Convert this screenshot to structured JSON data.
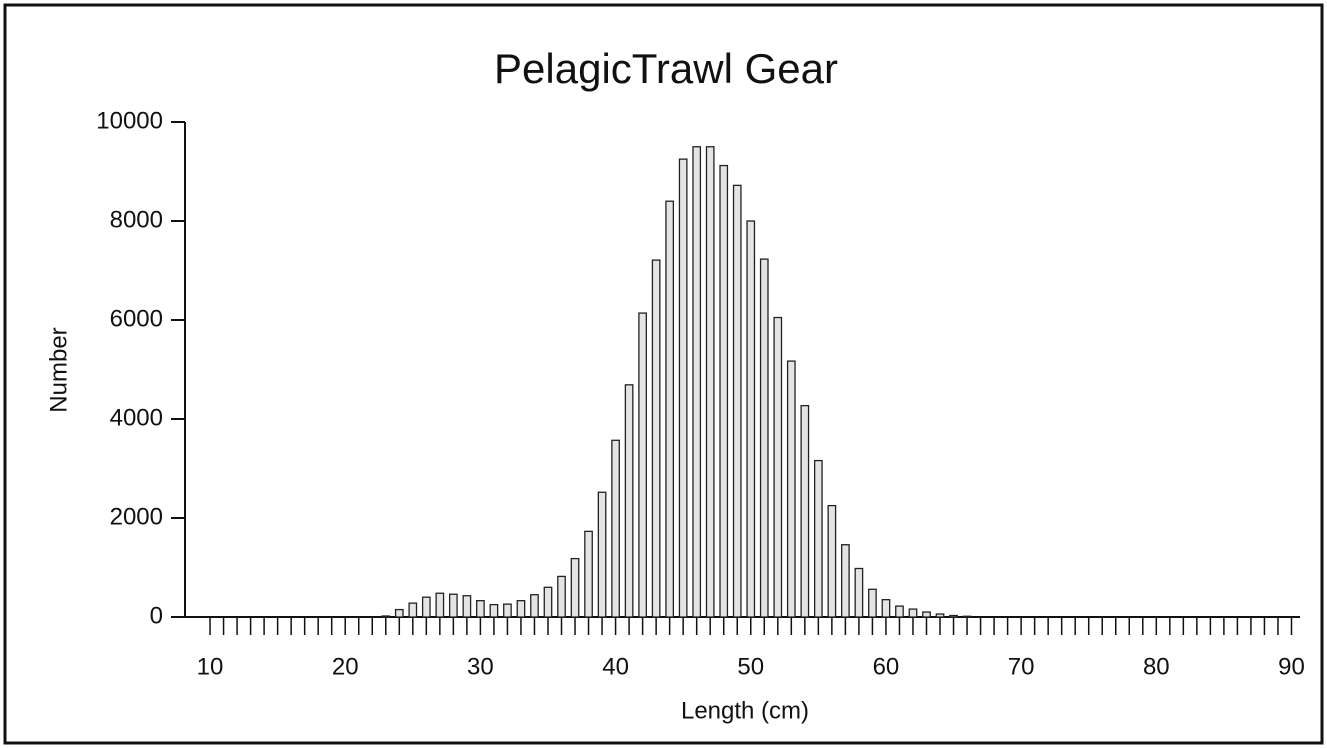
{
  "chart_data": {
    "type": "bar",
    "title": "PelagicTrawl Gear",
    "xlabel": "Length (cm)",
    "ylabel": "Number",
    "x": [
      10,
      11,
      12,
      13,
      14,
      15,
      16,
      17,
      18,
      19,
      20,
      21,
      22,
      23,
      24,
      25,
      26,
      27,
      28,
      29,
      30,
      31,
      32,
      33,
      34,
      35,
      36,
      37,
      38,
      39,
      40,
      41,
      42,
      43,
      44,
      45,
      46,
      47,
      48,
      49,
      50,
      51,
      52,
      53,
      54,
      55,
      56,
      57,
      58,
      59,
      60,
      61,
      62,
      63,
      64,
      65,
      66,
      67,
      68,
      69,
      70,
      71,
      72,
      73,
      74,
      75,
      76,
      77,
      78,
      79,
      80,
      81,
      82,
      83,
      84,
      85,
      86,
      87,
      88,
      89,
      90
    ],
    "values": [
      0,
      0,
      0,
      0,
      0,
      0,
      0,
      0,
      0,
      0,
      0,
      0,
      0,
      20,
      150,
      280,
      400,
      480,
      460,
      430,
      330,
      250,
      260,
      330,
      450,
      600,
      820,
      1180,
      1730,
      2520,
      3570,
      4690,
      6140,
      7210,
      8400,
      9250,
      9500,
      9500,
      9120,
      8720,
      8000,
      7230,
      6050,
      5170,
      4270,
      3160,
      2250,
      1460,
      980,
      560,
      350,
      220,
      160,
      100,
      60,
      30,
      15,
      0,
      0,
      0,
      0,
      0,
      0,
      0,
      0,
      0,
      0,
      0,
      0,
      0,
      0,
      0,
      0,
      0,
      0,
      0,
      0,
      0,
      0,
      0,
      0
    ],
    "color": "#e4e4e4",
    "xlim": [
      8,
      91
    ],
    "xticks": [
      10,
      20,
      30,
      40,
      50,
      60,
      70,
      80,
      90
    ],
    "ylim": [
      0,
      10000
    ],
    "yticks": [
      0,
      2000,
      4000,
      6000,
      8000,
      10000
    ]
  }
}
